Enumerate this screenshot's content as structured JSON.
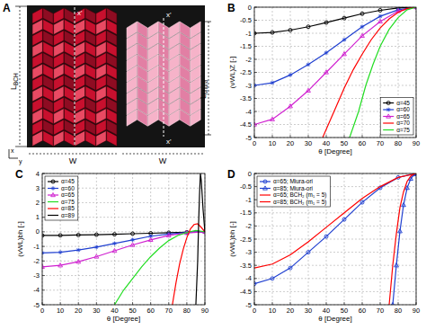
{
  "panel_a": {
    "label": "A",
    "lengths": [
      {
        "symbol": "L",
        "subscript": "BCH"
      },
      {
        "symbol": "L",
        "subscript": "Miura"
      }
    ],
    "widths": [
      "W",
      "W"
    ],
    "axes": [
      "x",
      "y"
    ],
    "fold_line_labels": [
      "x'",
      "x'",
      "x'"
    ]
  },
  "chart_data": [
    {
      "type": "line",
      "title": "B",
      "xlabel": "θ [Degree]",
      "ylabel": "(νWL)Z [-]",
      "xlim": [
        0,
        90
      ],
      "xticks": [
        0,
        10,
        20,
        30,
        40,
        50,
        60,
        70,
        80,
        90
      ],
      "ylim": [
        -5,
        0
      ],
      "yticks": [
        -5,
        -4.5,
        -4,
        -3.5,
        -3,
        -2.5,
        -2,
        -1.5,
        -1,
        -0.5,
        0
      ],
      "grid": true,
      "legend": "lower right",
      "series": [
        {
          "name": "α=45",
          "color": "#000000",
          "marker": "circle",
          "line_style": "solid",
          "x": [
            0,
            10,
            20,
            30,
            40,
            50,
            60,
            70,
            80,
            90
          ],
          "values": [
            -1,
            -0.97,
            -0.88,
            -0.75,
            -0.59,
            -0.42,
            -0.25,
            -0.12,
            -0.03,
            0
          ]
        },
        {
          "name": "α=60",
          "color": "#1f3fd0",
          "marker": "star",
          "line_style": "solid",
          "x": [
            0,
            10,
            20,
            30,
            40,
            50,
            60,
            70,
            80,
            90
          ],
          "values": [
            -3,
            -2.9,
            -2.6,
            -2.2,
            -1.75,
            -1.25,
            -0.75,
            -0.35,
            -0.1,
            0
          ]
        },
        {
          "name": "α=65",
          "color": "#d020d0",
          "marker": "triangle",
          "line_style": "solid",
          "x": [
            0,
            10,
            20,
            30,
            40,
            50,
            60,
            70,
            80,
            90
          ],
          "values": [
            -4.5,
            -4.3,
            -3.8,
            -3.2,
            -2.5,
            -1.8,
            -1.1,
            -0.55,
            -0.15,
            0
          ]
        },
        {
          "name": "α=70",
          "color": "#ff0000",
          "marker": "none",
          "line_style": "solid",
          "x": [
            38,
            45,
            50,
            55,
            60,
            65,
            70,
            75,
            80,
            85,
            90
          ],
          "values": [
            -5,
            -3.9,
            -3.1,
            -2.4,
            -1.8,
            -1.25,
            -0.8,
            -0.45,
            -0.2,
            -0.05,
            0
          ]
        },
        {
          "name": "α=75",
          "color": "#22dd22",
          "marker": "none",
          "line_style": "solid",
          "x": [
            53,
            58,
            62,
            66,
            70,
            75,
            80,
            85,
            90
          ],
          "values": [
            -5,
            -4,
            -3,
            -2.2,
            -1.5,
            -0.85,
            -0.4,
            -0.1,
            0
          ]
        }
      ]
    },
    {
      "type": "line",
      "title": "C",
      "xlabel": "θ [Degree]",
      "ylabel": "(νWL)bh [-]",
      "xlim": [
        0,
        90
      ],
      "xticks": [
        0,
        10,
        20,
        30,
        40,
        50,
        60,
        70,
        80,
        90
      ],
      "ylim": [
        -5,
        4
      ],
      "yticks": [
        -5,
        -4,
        -3,
        -2,
        -1,
        0,
        1,
        2,
        3,
        4
      ],
      "grid": true,
      "legend": "upper left",
      "series": [
        {
          "name": "α=45",
          "color": "#000000",
          "marker": "circle",
          "line_style": "solid",
          "x": [
            0,
            10,
            20,
            30,
            40,
            50,
            60,
            70,
            80,
            90
          ],
          "values": [
            -0.25,
            -0.24,
            -0.22,
            -0.2,
            -0.17,
            -0.13,
            -0.1,
            -0.06,
            -0.03,
            0
          ]
        },
        {
          "name": "α=60",
          "color": "#1f3fd0",
          "marker": "star",
          "line_style": "solid",
          "x": [
            0,
            10,
            20,
            30,
            40,
            50,
            60,
            70,
            80,
            90
          ],
          "values": [
            -1.45,
            -1.4,
            -1.25,
            -1.05,
            -0.8,
            -0.55,
            -0.3,
            -0.15,
            -0.05,
            0
          ]
        },
        {
          "name": "α=65",
          "color": "#d020d0",
          "marker": "triangle",
          "line_style": "solid",
          "x": [
            0,
            10,
            20,
            30,
            40,
            50,
            60,
            70,
            80,
            90
          ],
          "values": [
            -2.4,
            -2.3,
            -2.05,
            -1.7,
            -1.3,
            -0.9,
            -0.55,
            -0.25,
            -0.08,
            0
          ]
        },
        {
          "name": "α=75",
          "color": "#22dd22",
          "marker": "none",
          "line_style": "solid",
          "x": [
            40,
            45,
            50,
            55,
            60,
            65,
            70,
            75,
            80,
            85,
            90
          ],
          "values": [
            -5,
            -4,
            -3.2,
            -2.4,
            -1.7,
            -1.1,
            -0.6,
            -0.25,
            -0.05,
            0.1,
            0
          ]
        },
        {
          "name": "α=85",
          "color": "#ff0000",
          "marker": "none",
          "line_style": "solid",
          "x": [
            72,
            74,
            76,
            78,
            80,
            82,
            84,
            86,
            88,
            90
          ],
          "values": [
            -5,
            -3.5,
            -2.2,
            -1.2,
            -0.4,
            0.2,
            0.5,
            0.55,
            0.3,
            0
          ]
        },
        {
          "name": "α=89",
          "color": "#000000",
          "marker": "none",
          "line_style": "solid",
          "x": [
            85,
            86,
            86.5,
            87,
            87.5,
            88,
            89,
            90
          ],
          "values": [
            -5,
            -2,
            0.5,
            2.5,
            4,
            3.5,
            1.5,
            0
          ]
        }
      ]
    },
    {
      "type": "line",
      "title": "D",
      "xlabel": "θ [Degree]",
      "ylabel": "(νWL)bh [-]",
      "xlim": [
        0,
        90
      ],
      "xticks": [
        0,
        10,
        20,
        30,
        40,
        50,
        60,
        70,
        80,
        90
      ],
      "ylim": [
        -5,
        0
      ],
      "yticks": [
        -5,
        -4.5,
        -4,
        -3.5,
        -3,
        -2.5,
        -2,
        -1.5,
        -1,
        -0.5,
        0
      ],
      "grid": true,
      "legend": "upper left",
      "series": [
        {
          "name": "α=65; Miura-ori",
          "color": "#1f3fd0",
          "marker": "circle",
          "line_style": "solid",
          "x": [
            0,
            10,
            20,
            30,
            40,
            50,
            60,
            70,
            80,
            90
          ],
          "values": [
            -4.2,
            -4,
            -3.6,
            -3,
            -2.4,
            -1.75,
            -1.1,
            -0.55,
            -0.15,
            0
          ]
        },
        {
          "name": "α=85; Miura-ori",
          "color": "#1f3fd0",
          "marker": "triangle",
          "line_style": "solid",
          "x": [
            77,
            79,
            81,
            83,
            85,
            87,
            89,
            90
          ],
          "values": [
            -5,
            -3.5,
            -2.2,
            -1.2,
            -0.55,
            -0.2,
            -0.03,
            0
          ]
        },
        {
          "name": "α=65; BCH₂ (m₁ = 5)",
          "color": "#ff0000",
          "marker": "none",
          "line_style": "solid",
          "x": [
            0,
            10,
            20,
            30,
            40,
            50,
            60,
            70,
            80,
            90
          ],
          "values": [
            -3.6,
            -3.45,
            -3.1,
            -2.6,
            -2.05,
            -1.5,
            -0.95,
            -0.5,
            -0.15,
            0
          ]
        },
        {
          "name": "α=85; BCH₂ (m₁ = 5)",
          "color": "#ff0000",
          "marker": "none",
          "line_style": "solid",
          "x": [
            75,
            77,
            79,
            81,
            83,
            85,
            87,
            89,
            90
          ],
          "values": [
            -5,
            -3.5,
            -2.3,
            -1.3,
            -0.7,
            -0.3,
            -0.1,
            -0.02,
            0
          ]
        }
      ]
    }
  ]
}
